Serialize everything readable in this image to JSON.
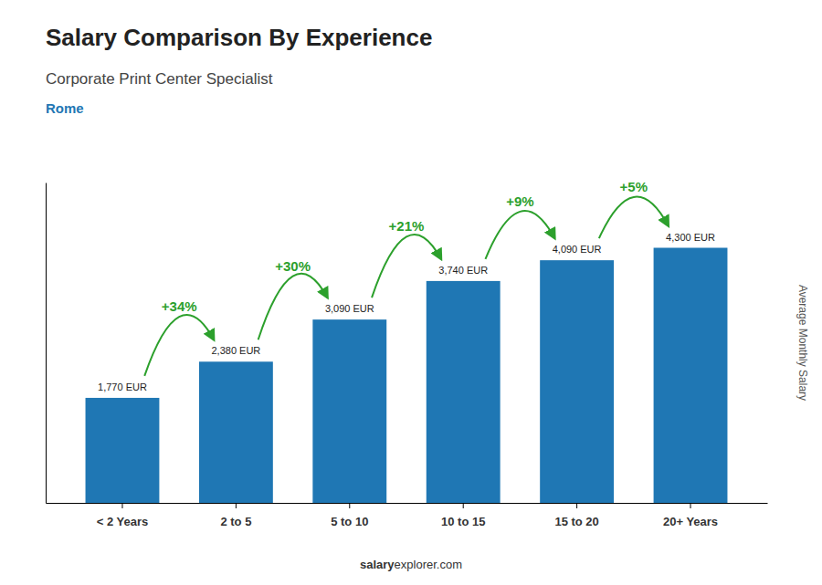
{
  "chart_data": {
    "type": "bar",
    "title": "Salary Comparison By Experience",
    "subtitle": [
      "Corporate Print Center Specialist",
      "Rome"
    ],
    "ylabel": "Average Monthly Salary",
    "categories": [
      "< 2 Years",
      "2 to 5",
      "5 to 10",
      "10 to 15",
      "15 to 20",
      "20+ Years"
    ],
    "values": [
      1770,
      2380,
      3090,
      3740,
      4090,
      4300
    ],
    "value_labels": [
      "1,770 EUR",
      "2,380 EUR",
      "3,090 EUR",
      "3,740 EUR",
      "4,090 EUR",
      "4,300 EUR"
    ],
    "data_labels": true,
    "annotations": [
      "+34%",
      "+30%",
      "+21%",
      "+9%",
      "+5%"
    ],
    "source": [
      "salary",
      "explorer.com"
    ],
    "ylim": [
      0,
      5400
    ],
    "tick_labels": "x",
    "grid": false
  }
}
